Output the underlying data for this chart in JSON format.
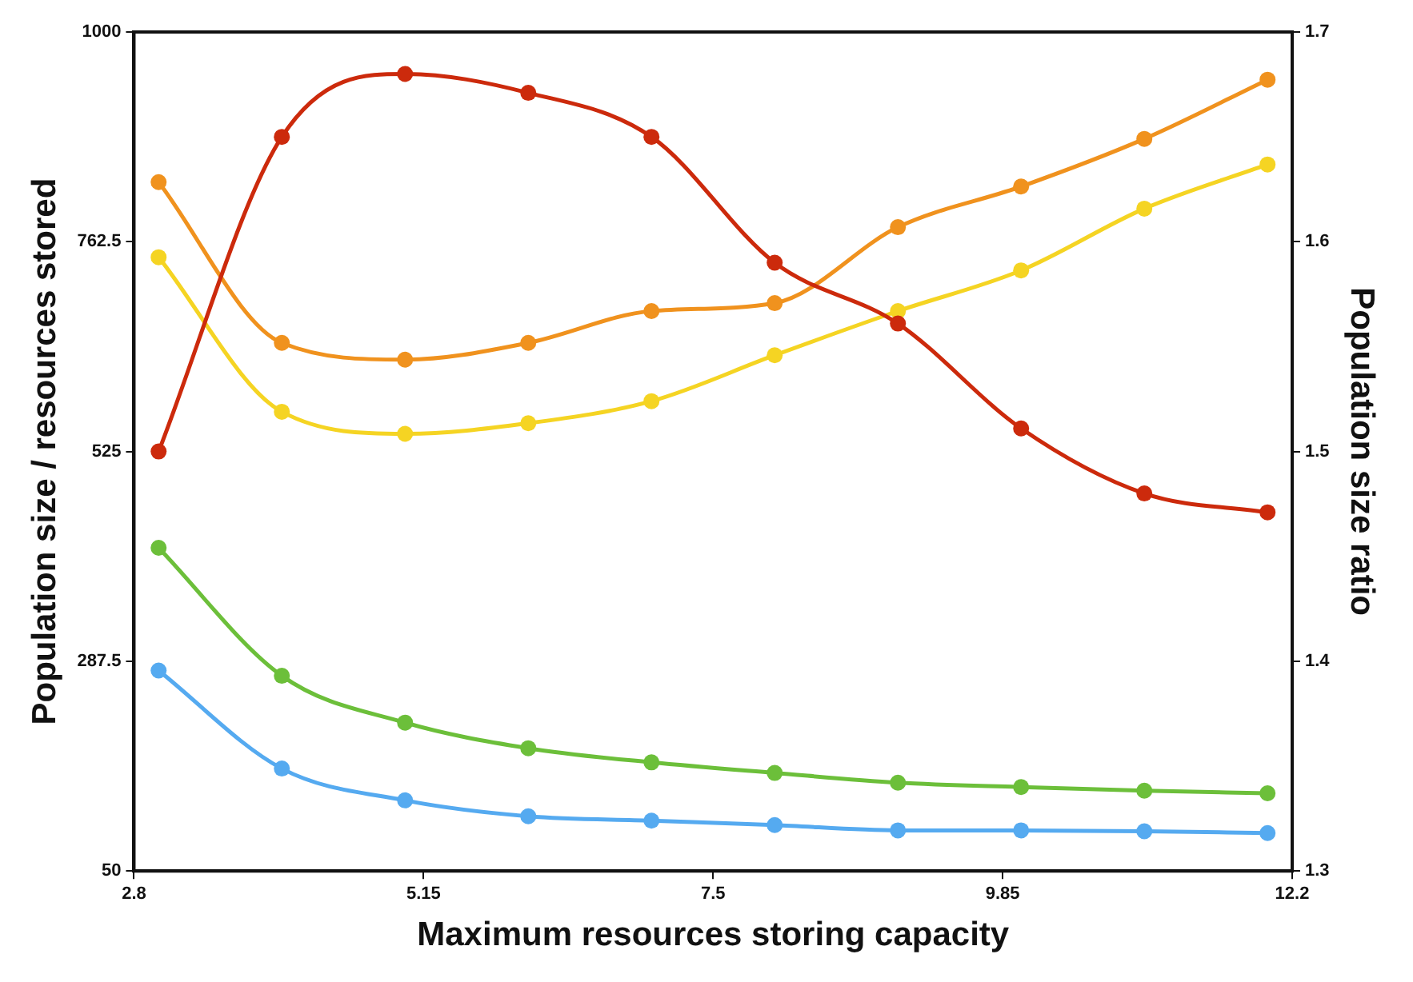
{
  "chart_data": {
    "type": "line",
    "xlabel": "Maximum resources storing capacity",
    "ylabel": "Population size / resources stored",
    "y2label": "Population size ratio",
    "x": [
      3,
      4,
      5,
      6,
      7,
      8,
      9,
      10,
      11,
      12
    ],
    "xlim": [
      2.8,
      12.2
    ],
    "xticks": [
      2.8,
      5.15,
      7.5,
      9.85,
      12.2
    ],
    "ylim": [
      50,
      1000
    ],
    "yticks": [
      50,
      287.5,
      525,
      762.5,
      1000
    ],
    "y2lim": [
      1.3,
      1.7
    ],
    "y2ticks": [
      1.3,
      1.4,
      1.5,
      1.6,
      1.7
    ],
    "grid": false,
    "legend": false,
    "marker": "circle",
    "line_style": "solid",
    "series": [
      {
        "color": "#cc2a0c",
        "axis": "y2",
        "values": [
          1.5,
          1.65,
          1.68,
          1.671,
          1.65,
          1.59,
          1.561,
          1.511,
          1.48,
          1.471
        ]
      },
      {
        "color": "#f0921e",
        "values": [
          830,
          648,
          629,
          648,
          684,
          693,
          779,
          825,
          879,
          946
        ]
      },
      {
        "color": "#f5d423",
        "values": [
          745,
          570,
          545,
          557,
          582,
          634,
          684,
          730,
          800,
          850
        ]
      },
      {
        "color": "#6cbf3a",
        "values": [
          416,
          271,
          218,
          189,
          173,
          161,
          150,
          145,
          141,
          138
        ]
      },
      {
        "color": "#55aaf0",
        "values": [
          277,
          166,
          130,
          112,
          107,
          102,
          96,
          96,
          95,
          93
        ]
      }
    ]
  }
}
